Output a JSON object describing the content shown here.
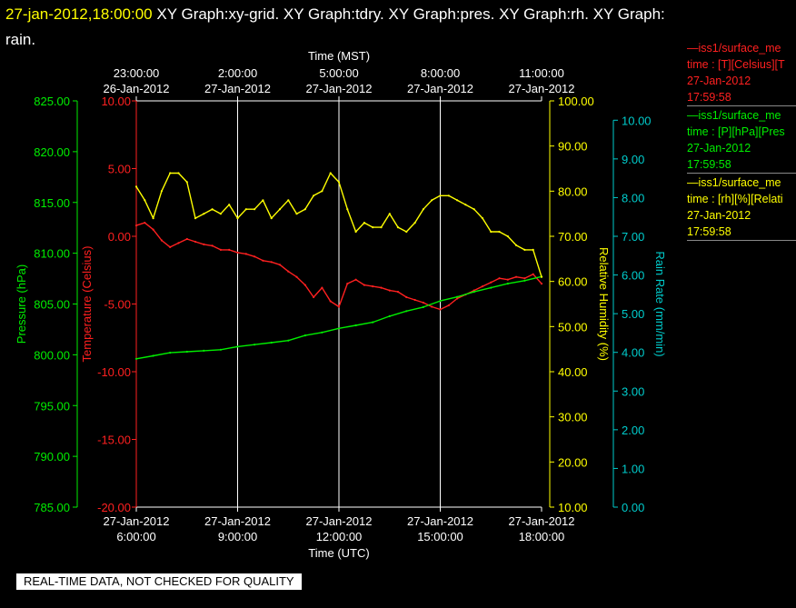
{
  "header": {
    "datetime": "27-jan-2012,18:00:00",
    "graphs": "XY Graph:xy-grid.  XY Graph:tdry.  XY Graph:pres.  XY Graph:rh.  XY Graph:",
    "graphs_cont": "rain."
  },
  "legend": {
    "entries": [
      {
        "line1": "—iss1/surface_me",
        "line2": "time : [T][Celsius][T",
        "line3": "27-Jan-2012",
        "line4": "17:59:58",
        "color": "#ff2020"
      },
      {
        "line1": "—iss1/surface_me",
        "line2": "time : [P][hPa][Pres",
        "line3": "27-Jan-2012",
        "line4": "17:59:58",
        "color": "#00ee00"
      },
      {
        "line1": "—iss1/surface_me",
        "line2": "time : [rh][%][Relati",
        "line3": "27-Jan-2012",
        "line4": "17:59:58",
        "color": "#ffffff"
      }
    ]
  },
  "disclaimer": "REAL-TIME DATA, NOT CHECKED FOR QUALITY",
  "chart_data": {
    "type": "line",
    "x_top_label": "Time (MST)",
    "x_bottom_label": "Time (UTC)",
    "x_range_utc_hours": [
      6,
      18
    ],
    "x_top_ticks": [
      {
        "time": "23:00:00",
        "date": "26-Jan-2012"
      },
      {
        "time": "2:00:00",
        "date": "27-Jan-2012"
      },
      {
        "time": "5:00:00",
        "date": "27-Jan-2012"
      },
      {
        "time": "8:00:00",
        "date": "27-Jan-2012"
      },
      {
        "time": "11:00:00",
        "date": "27-Jan-2012"
      }
    ],
    "x_bottom_ticks": [
      {
        "date": "27-Jan-2012",
        "time": "6:00:00"
      },
      {
        "date": "27-Jan-2012",
        "time": "9:00:00"
      },
      {
        "date": "27-Jan-2012",
        "time": "12:00:00"
      },
      {
        "date": "27-Jan-2012",
        "time": "15:00:00"
      },
      {
        "date": "27-Jan-2012",
        "time": "18:00:00"
      }
    ],
    "grid": "vertical",
    "axes": {
      "pressure": {
        "label": "Pressure (hPa)",
        "range": [
          785,
          825
        ],
        "ticks": [
          "785.00",
          "790.00",
          "795.00",
          "800.00",
          "805.00",
          "810.00",
          "815.00",
          "820.00",
          "825.00"
        ],
        "color": "#00ee00"
      },
      "temperature": {
        "label": "Temperature (Celsius)",
        "range": [
          -20,
          10
        ],
        "ticks": [
          "-20.00",
          "-15.00",
          "-10.00",
          "-5.00",
          "0.00",
          "5.00",
          "10.00"
        ],
        "color": "#ff2020"
      },
      "humidity": {
        "label": "Relative Humidity (%)",
        "range": [
          10,
          100
        ],
        "ticks": [
          "10.00",
          "20.00",
          "30.00",
          "40.00",
          "50.00",
          "60.00",
          "70.00",
          "80.00",
          "90.00",
          "100.00"
        ],
        "color": "#ffff00"
      },
      "rain": {
        "label": "Rain Rate (mm/min)",
        "range": [
          0,
          10.5
        ],
        "ticks": [
          "0.00",
          "1.00",
          "2.00",
          "3.00",
          "4.00",
          "5.00",
          "6.00",
          "7.00",
          "8.00",
          "9.00",
          "10.00"
        ],
        "color": "#00cccc"
      }
    },
    "series": [
      {
        "axis": "temperature",
        "color": "#ff2020",
        "x": [
          6.0,
          6.25,
          6.5,
          6.75,
          7.0,
          7.25,
          7.5,
          7.75,
          8.0,
          8.25,
          8.5,
          8.75,
          9.0,
          9.25,
          9.5,
          9.75,
          10.0,
          10.25,
          10.5,
          10.75,
          11.0,
          11.25,
          11.5,
          11.75,
          12.0,
          12.25,
          12.5,
          12.75,
          13.0,
          13.25,
          13.5,
          13.75,
          14.0,
          14.25,
          14.5,
          14.75,
          15.0,
          15.25,
          15.5,
          15.75,
          16.0,
          16.25,
          16.5,
          16.75,
          17.0,
          17.25,
          17.5,
          17.75,
          18.0
        ],
        "y": [
          0.8,
          1.0,
          0.5,
          -0.3,
          -0.8,
          -0.5,
          -0.2,
          -0.4,
          -0.6,
          -0.7,
          -1.0,
          -1.0,
          -1.2,
          -1.3,
          -1.5,
          -1.8,
          -1.9,
          -2.1,
          -2.6,
          -3.0,
          -3.6,
          -4.5,
          -3.8,
          -4.8,
          -5.2,
          -3.5,
          -3.2,
          -3.6,
          -3.7,
          -3.8,
          -4.0,
          -4.1,
          -4.5,
          -4.7,
          -4.9,
          -5.2,
          -5.4,
          -5.1,
          -4.6,
          -4.3,
          -4.0,
          -3.7,
          -3.4,
          -3.1,
          -3.2,
          -3.0,
          -3.1,
          -2.8,
          -3.5
        ]
      },
      {
        "axis": "pressure",
        "color": "#00ee00",
        "x": [
          6.0,
          6.5,
          7.0,
          7.5,
          8.0,
          8.5,
          9.0,
          9.5,
          10.0,
          10.5,
          11.0,
          11.5,
          12.0,
          12.5,
          13.0,
          13.5,
          14.0,
          14.5,
          15.0,
          15.5,
          16.0,
          16.5,
          17.0,
          17.5,
          18.0
        ],
        "y": [
          799.6,
          799.9,
          800.2,
          800.3,
          800.4,
          800.5,
          800.8,
          801.0,
          801.2,
          801.4,
          801.9,
          802.2,
          802.6,
          802.9,
          803.2,
          803.8,
          804.3,
          804.7,
          805.3,
          805.7,
          806.2,
          806.6,
          807.0,
          807.3,
          807.7
        ]
      },
      {
        "axis": "humidity",
        "color": "#ffff00",
        "x": [
          6.0,
          6.25,
          6.5,
          6.75,
          7.0,
          7.25,
          7.5,
          7.75,
          8.0,
          8.25,
          8.5,
          8.75,
          9.0,
          9.25,
          9.5,
          9.75,
          10.0,
          10.25,
          10.5,
          10.75,
          11.0,
          11.25,
          11.5,
          11.75,
          12.0,
          12.25,
          12.5,
          12.75,
          13.0,
          13.25,
          13.5,
          13.75,
          14.0,
          14.25,
          14.5,
          14.75,
          15.0,
          15.25,
          15.5,
          15.75,
          16.0,
          16.25,
          16.5,
          16.75,
          17.0,
          17.25,
          17.5,
          17.75,
          18.0
        ],
        "y": [
          81,
          78,
          74,
          80,
          84,
          84,
          82,
          74,
          75,
          76,
          75,
          77,
          74,
          76,
          76,
          78,
          74,
          76,
          78,
          75,
          76,
          79,
          80,
          84,
          82,
          76,
          71,
          73,
          72,
          72,
          75,
          72,
          71,
          73,
          76,
          78,
          79,
          79,
          78,
          77,
          76,
          74,
          71,
          71,
          70,
          68,
          67,
          67,
          61
        ]
      }
    ]
  }
}
